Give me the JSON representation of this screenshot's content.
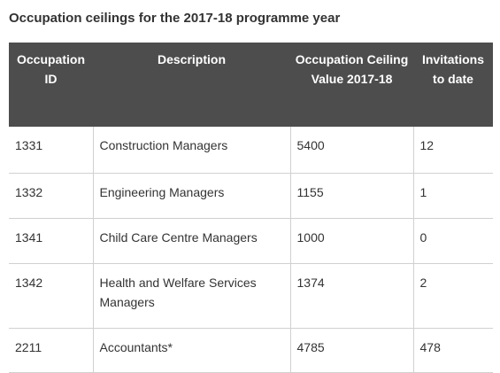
{
  "caption": "Occupation ceilings for the 2017-18 programme year",
  "columns": [
    "Occupation ID",
    "Description",
    "Occupation Ceiling Value 2017-18",
    "Invitations to date"
  ],
  "rows": [
    {
      "id": "1331",
      "description": "Construction Managers",
      "ceiling": "5400",
      "invitations": "12"
    },
    {
      "id": "1332",
      "description": "Engineering Managers",
      "ceiling": "1155",
      "invitations": "1"
    },
    {
      "id": "1341",
      "description": "Child Care Centre Managers",
      "ceiling": "1000",
      "invitations": "0"
    },
    {
      "id": "1342",
      "description": "Health and Welfare Services Managers",
      "ceiling": "1374",
      "invitations": "2"
    },
    {
      "id": "2211",
      "description": "Accountants*",
      "ceiling": "4785",
      "invitations": "478"
    }
  ]
}
